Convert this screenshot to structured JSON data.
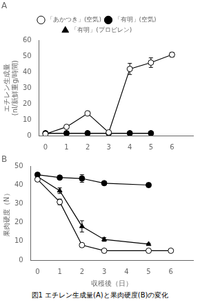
{
  "chart_data": [
    {
      "type": "line",
      "title": "A",
      "ylabel": [
        "エチレン生成量",
        "(nl/新鮮重g/時間)"
      ],
      "xlim": [
        -0.3,
        7
      ],
      "xticks": [
        0,
        1,
        2,
        3,
        4,
        5,
        6
      ],
      "ylim": [
        0,
        60
      ],
      "yticks": [
        0,
        10,
        20,
        30,
        40,
        50,
        60
      ],
      "grid": false,
      "legend": "top",
      "series": [
        {
          "name": "「あかつき」(空気)",
          "x": [
            0,
            1,
            2,
            3,
            4,
            5,
            6
          ],
          "values": [
            1.0,
            5.5,
            14.0,
            2.0,
            42.0,
            46.0,
            51.0
          ],
          "yerr": [
            0.3,
            0.8,
            1.2,
            0.3,
            3.5,
            3.0,
            1.5
          ],
          "color": "black",
          "marker": "open_circle",
          "line_style": "solid"
        },
        {
          "name": "「有明」(空気)",
          "x": [
            0,
            1,
            2,
            3,
            4,
            5
          ],
          "values": [
            1.5,
            1.5,
            1.5,
            1.5,
            1.5,
            1.5
          ],
          "yerr": [
            0.2,
            0.2,
            0.2,
            0.2,
            0.2,
            0.2
          ],
          "color": "black",
          "marker": "circle",
          "line_style": "solid"
        },
        {
          "name": "「有明」(プロピレン)",
          "x": [
            0,
            1,
            2,
            3,
            4,
            5
          ],
          "values": [
            1.5,
            1.5,
            1.5,
            1.5,
            1.5,
            1.5
          ],
          "yerr": [
            0.2,
            0.2,
            0.2,
            0.2,
            0.2,
            0.2
          ],
          "color": "black",
          "marker": "triangle",
          "line_style": "solid"
        }
      ]
    },
    {
      "type": "line",
      "title": "B",
      "ylabel": "果肉硬度（N）",
      "xlabel": "収穫後（日）",
      "xlim": [
        -0.3,
        7
      ],
      "xticks": [
        0,
        1,
        2,
        3,
        4,
        5,
        6
      ],
      "ylim": [
        0,
        50
      ],
      "yticks": [
        0,
        10,
        20,
        30,
        40,
        50
      ],
      "grid": false,
      "legend": false,
      "series": [
        {
          "name": "「あかつき」(空気)",
          "x": [
            0,
            1,
            2,
            3,
            5,
            6
          ],
          "values": [
            43.0,
            31.0,
            8.0,
            5.0,
            5.0,
            5.0
          ],
          "yerr": [
            1.0,
            1.5,
            1.0,
            0.5,
            0.5,
            0.5
          ],
          "color": "black",
          "marker": "open_circle",
          "line_style": "solid"
        },
        {
          "name": "「有明」(空気)",
          "x": [
            0,
            1,
            2,
            3,
            5
          ],
          "values": [
            45.5,
            44.0,
            43.5,
            41.0,
            40.0
          ],
          "yerr": [
            1.0,
            0.8,
            2.0,
            1.0,
            1.0
          ],
          "color": "black",
          "marker": "circle",
          "line_style": "solid"
        },
        {
          "name": "「有明」(プロピレン)",
          "x": [
            0,
            1,
            2,
            3,
            5
          ],
          "values": [
            44.5,
            37.0,
            18.0,
            11.0,
            8.5
          ],
          "yerr": [
            1.0,
            1.5,
            3.0,
            1.0,
            0.5
          ],
          "color": "black",
          "marker": "triangle",
          "line_style": "solid"
        }
      ]
    }
  ],
  "caption": "図1  エチレン生成量(A)と果肉硬度(B)の変化"
}
